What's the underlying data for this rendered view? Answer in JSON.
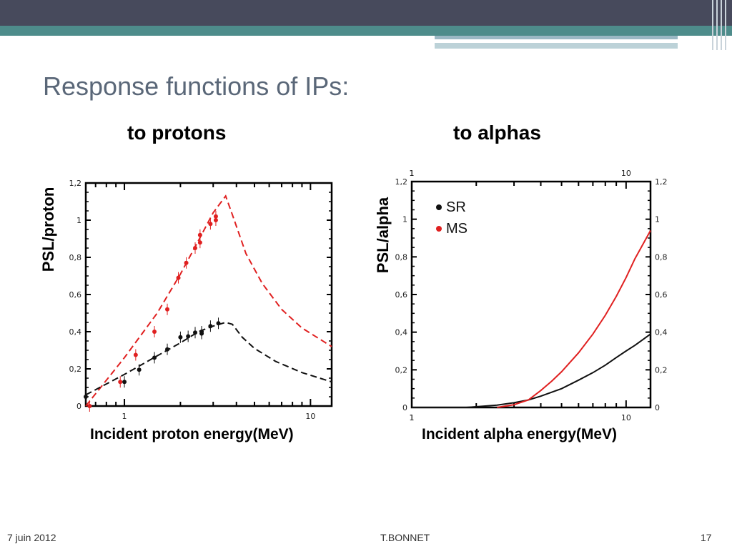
{
  "slide": {
    "title": "Response functions of IPs:",
    "footer_date": "7  juin 2012",
    "footer_author": "T.BONNET",
    "page_number": "17"
  },
  "panels": {
    "left_title": "to protons",
    "right_title": "to alphas",
    "left_ylabel": "PSL/proton",
    "right_ylabel": "PSL/alpha",
    "left_xlabel": "Incident proton energy(MeV)",
    "right_xlabel": "Incident alpha energy(MeV)"
  },
  "chart_data": [
    {
      "type": "scatter",
      "title": "to protons",
      "xlabel": "Incident proton energy(MeV)",
      "ylabel": "PSL/proton",
      "xscale": "log",
      "xlim": [
        0.62,
        13
      ],
      "ylim": [
        0,
        1.2
      ],
      "yticks": [
        "0",
        "0,2",
        "0,4",
        "0,6",
        "0,8",
        "1",
        "1,2"
      ],
      "xticks": [
        "1",
        "10"
      ],
      "series": [
        {
          "color": "#e02020",
          "points": [
            {
              "x": 0.65,
              "y": 0.0
            },
            {
              "x": 0.95,
              "y": 0.13
            },
            {
              "x": 1.15,
              "y": 0.275
            },
            {
              "x": 1.45,
              "y": 0.4
            },
            {
              "x": 1.7,
              "y": 0.52
            },
            {
              "x": 1.95,
              "y": 0.69
            },
            {
              "x": 2.15,
              "y": 0.77
            },
            {
              "x": 2.4,
              "y": 0.85
            },
            {
              "x": 2.55,
              "y": 0.92
            },
            {
              "x": 2.55,
              "y": 0.88
            },
            {
              "x": 2.9,
              "y": 0.98
            },
            {
              "x": 3.1,
              "y": 1.02
            },
            {
              "x": 3.1,
              "y": 1.0
            }
          ],
          "model": [
            {
              "x": 0.62,
              "y": 0.0
            },
            {
              "x": 1.0,
              "y": 0.26
            },
            {
              "x": 1.5,
              "y": 0.5
            },
            {
              "x": 2.0,
              "y": 0.71
            },
            {
              "x": 2.5,
              "y": 0.89
            },
            {
              "x": 3.0,
              "y": 1.04
            },
            {
              "x": 3.5,
              "y": 1.13
            },
            {
              "x": 3.8,
              "y": 1.03
            },
            {
              "x": 4.5,
              "y": 0.82
            },
            {
              "x": 5.5,
              "y": 0.66
            },
            {
              "x": 7.0,
              "y": 0.52
            },
            {
              "x": 9.0,
              "y": 0.42
            },
            {
              "x": 13.0,
              "y": 0.32
            }
          ]
        },
        {
          "color": "#111111",
          "points": [
            {
              "x": 0.62,
              "y": 0.05
            },
            {
              "x": 1.0,
              "y": 0.13
            },
            {
              "x": 1.2,
              "y": 0.195
            },
            {
              "x": 1.45,
              "y": 0.26
            },
            {
              "x": 1.7,
              "y": 0.305
            },
            {
              "x": 2.0,
              "y": 0.37
            },
            {
              "x": 2.2,
              "y": 0.375
            },
            {
              "x": 2.4,
              "y": 0.395
            },
            {
              "x": 2.6,
              "y": 0.39
            },
            {
              "x": 2.6,
              "y": 0.4
            },
            {
              "x": 2.9,
              "y": 0.43
            },
            {
              "x": 3.2,
              "y": 0.445
            }
          ],
          "model": [
            {
              "x": 0.62,
              "y": 0.06
            },
            {
              "x": 1.0,
              "y": 0.17
            },
            {
              "x": 1.5,
              "y": 0.27
            },
            {
              "x": 2.0,
              "y": 0.34
            },
            {
              "x": 2.5,
              "y": 0.4
            },
            {
              "x": 3.0,
              "y": 0.43
            },
            {
              "x": 3.5,
              "y": 0.45
            },
            {
              "x": 3.8,
              "y": 0.44
            },
            {
              "x": 4.3,
              "y": 0.37
            },
            {
              "x": 5.0,
              "y": 0.31
            },
            {
              "x": 6.5,
              "y": 0.24
            },
            {
              "x": 9.0,
              "y": 0.18
            },
            {
              "x": 13.0,
              "y": 0.13
            }
          ]
        }
      ]
    },
    {
      "type": "line",
      "title": "to alphas",
      "xlabel": "Incident alpha energy(MeV)",
      "ylabel": "PSL/alpha",
      "xscale": "log",
      "xlim": [
        1,
        13
      ],
      "ylim": [
        0,
        1.2
      ],
      "yticks": [
        "0",
        "0,2",
        "0,4",
        "0,6",
        "0,8",
        "1",
        "1,2"
      ],
      "xticks": [
        "1",
        "10"
      ],
      "legend_position": "top-left",
      "series": [
        {
          "name": "SR",
          "color": "#111111",
          "points": [
            {
              "x": 1.8,
              "y": 0.0
            },
            {
              "x": 2.5,
              "y": 0.012
            },
            {
              "x": 3.0,
              "y": 0.025
            },
            {
              "x": 3.5,
              "y": 0.04
            },
            {
              "x": 4.0,
              "y": 0.06
            },
            {
              "x": 5.0,
              "y": 0.1
            },
            {
              "x": 6.0,
              "y": 0.145
            },
            {
              "x": 7.0,
              "y": 0.185
            },
            {
              "x": 8.0,
              "y": 0.225
            },
            {
              "x": 9.0,
              "y": 0.265
            },
            {
              "x": 10.0,
              "y": 0.3
            },
            {
              "x": 11.0,
              "y": 0.33
            },
            {
              "x": 13.0,
              "y": 0.39
            }
          ]
        },
        {
          "name": "MS",
          "color": "#e02020",
          "points": [
            {
              "x": 2.5,
              "y": 0.0
            },
            {
              "x": 3.0,
              "y": 0.015
            },
            {
              "x": 3.5,
              "y": 0.04
            },
            {
              "x": 4.0,
              "y": 0.09
            },
            {
              "x": 4.5,
              "y": 0.14
            },
            {
              "x": 5.0,
              "y": 0.19
            },
            {
              "x": 6.0,
              "y": 0.29
            },
            {
              "x": 7.0,
              "y": 0.39
            },
            {
              "x": 8.0,
              "y": 0.49
            },
            {
              "x": 9.0,
              "y": 0.59
            },
            {
              "x": 10.0,
              "y": 0.69
            },
            {
              "x": 11.0,
              "y": 0.79
            },
            {
              "x": 13.0,
              "y": 0.94
            }
          ]
        }
      ]
    }
  ]
}
